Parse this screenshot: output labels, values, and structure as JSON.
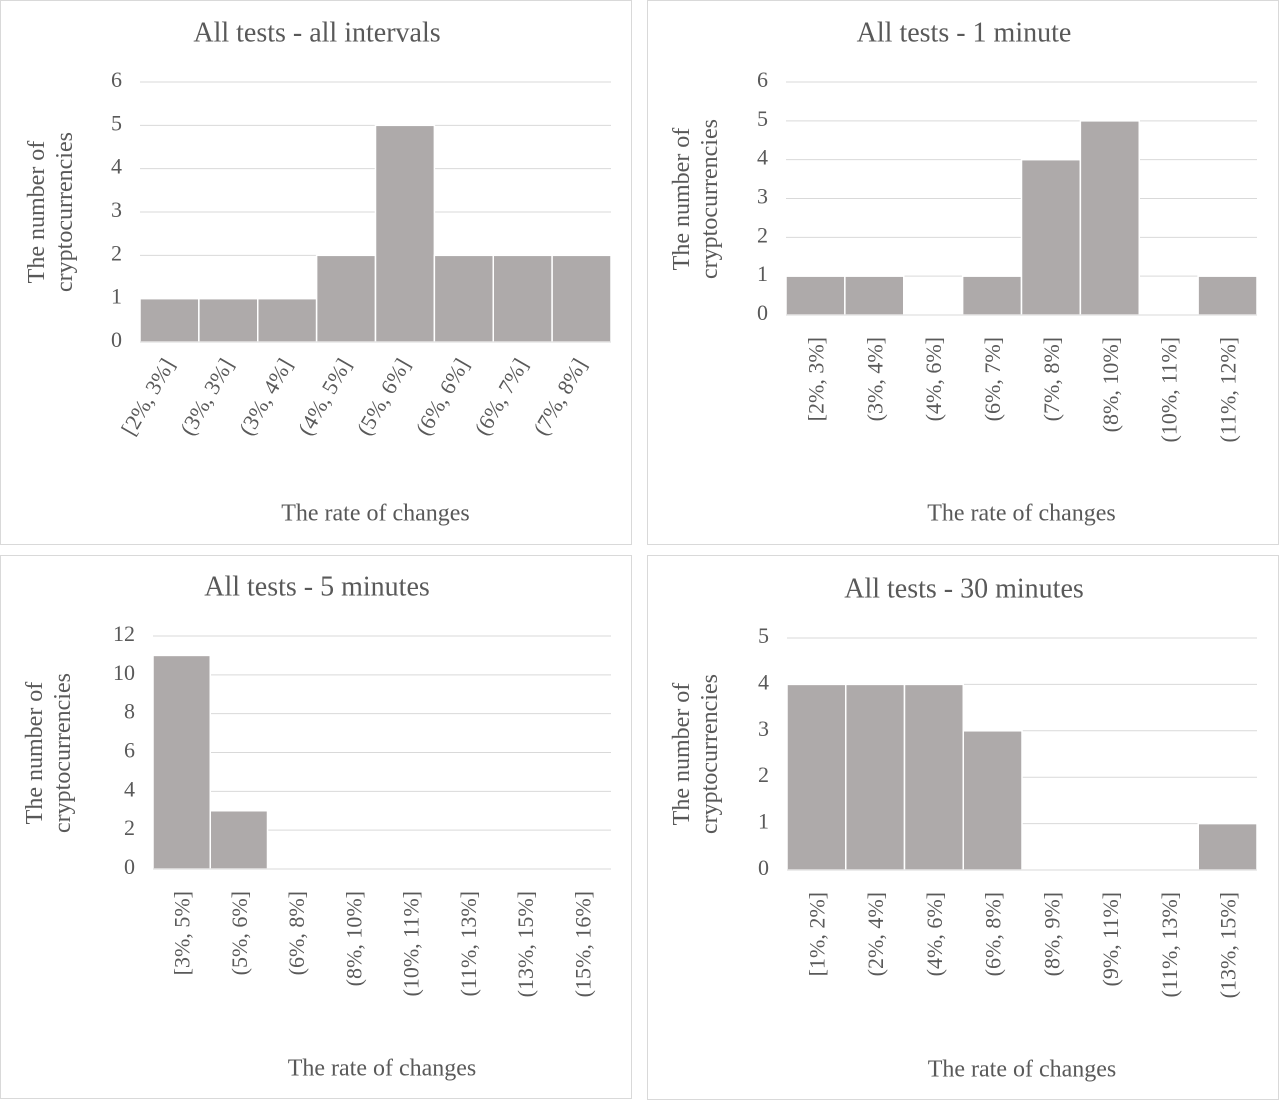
{
  "chart_data": [
    {
      "type": "bar",
      "title": "All tests - all intervals",
      "xlabel": "The rate of changes",
      "ylabel": "The number of cryptocurrencies",
      "categories": [
        "[2%, 3%]",
        "(3%, 3%]",
        "(3%, 4%]",
        "(4%, 5%]",
        "(5%, 6%]",
        "(6%, 6%]",
        "(6%, 7%]",
        "(7%, 8%]"
      ],
      "values": [
        1,
        1,
        1,
        2,
        5,
        2,
        2,
        2
      ],
      "color": "#aeaaaa",
      "ylim": [
        0,
        6
      ],
      "yticks": [
        0,
        1,
        2,
        3,
        4,
        5,
        6
      ],
      "grid": true
    },
    {
      "type": "bar",
      "title": "All tests - 1 minute",
      "xlabel": "The rate of changes",
      "ylabel": "The number of cryptocurrencies",
      "categories": [
        "[2%, 3%]",
        "(3%, 4%]",
        "(4%, 6%]",
        "(6%, 7%]",
        "(7%, 8%]",
        "(8%, 10%]",
        "(10%, 11%]",
        "(11%, 12%]"
      ],
      "values": [
        1,
        1,
        0,
        1,
        4,
        5,
        0,
        1
      ],
      "color": "#aeaaaa",
      "ylim": [
        0,
        6
      ],
      "yticks": [
        0,
        1,
        2,
        3,
        4,
        5,
        6
      ],
      "grid": true
    },
    {
      "type": "bar",
      "title": "All tests - 5 minutes",
      "xlabel": "The rate of changes",
      "ylabel": "The number of cryptocurrencies",
      "categories": [
        "[3%, 5%]",
        "(5%, 6%]",
        "(6%, 8%]",
        "(8%, 10%]",
        "(10%, 11%]",
        "(11%, 13%]",
        "(13%, 15%]",
        "(15%, 16%]"
      ],
      "values": [
        11,
        3,
        0,
        0,
        0,
        0,
        0,
        0
      ],
      "color": "#aeaaaa",
      "ylim": [
        0,
        12
      ],
      "yticks": [
        0,
        2,
        4,
        6,
        8,
        10,
        12
      ],
      "grid": true
    },
    {
      "type": "bar",
      "title": "All tests - 30 minutes",
      "xlabel": "The rate of changes",
      "ylabel": "The number of cryptocurrencies",
      "categories": [
        "[1%, 2%]",
        "(2%, 4%]",
        "(4%, 6%]",
        "(6%, 8%]",
        "(8%, 9%]",
        "(9%, 11%]",
        "(11%, 13%]",
        "(13%, 15%]"
      ],
      "values": [
        4,
        4,
        4,
        3,
        0,
        0,
        0,
        1
      ],
      "color": "#aeaaaa",
      "ylim": [
        0,
        5
      ],
      "yticks": [
        0,
        1,
        2,
        3,
        4,
        5
      ],
      "grid": true
    }
  ]
}
